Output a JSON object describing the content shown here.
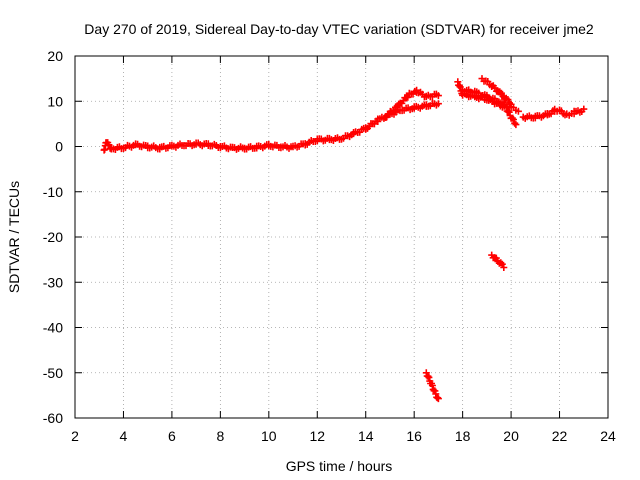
{
  "chart_data": {
    "type": "scatter",
    "title": "Day 270 of 2019, Sidereal Day-to-day VTEC variation (SDTVAR) for receiver jme2",
    "xlabel": "GPS time / hours",
    "ylabel": "SDTVAR / TECUs",
    "xlim": [
      2,
      24
    ],
    "ylim": [
      -60,
      20
    ],
    "xticks": [
      2,
      4,
      6,
      8,
      10,
      12,
      14,
      16,
      18,
      20,
      22,
      24
    ],
    "yticks": [
      -60,
      -50,
      -40,
      -30,
      -20,
      -10,
      0,
      10,
      20
    ],
    "grid": true,
    "series": [
      {
        "name": "jme2",
        "color": "#ff0000",
        "marker": "plus",
        "segments": [
          [
            [
              3.2,
              -0.8
            ],
            [
              3.3,
              1.0
            ],
            [
              3.5,
              -0.5
            ],
            [
              4.0,
              -0.2
            ],
            [
              4.5,
              0.3
            ],
            [
              5.0,
              0.0
            ],
            [
              5.5,
              -0.3
            ],
            [
              6.0,
              0.0
            ],
            [
              6.5,
              0.4
            ],
            [
              7.0,
              0.5
            ],
            [
              7.5,
              0.4
            ],
            [
              8.0,
              0.0
            ],
            [
              8.5,
              -0.4
            ],
            [
              9.0,
              -0.3
            ],
            [
              9.5,
              -0.2
            ],
            [
              10.0,
              0.2
            ],
            [
              10.5,
              0.0
            ],
            [
              11.0,
              -0.2
            ],
            [
              11.5,
              0.6
            ],
            [
              12.0,
              1.5
            ],
            [
              12.5,
              1.5
            ],
            [
              13.0,
              1.8
            ],
            [
              13.5,
              2.8
            ],
            [
              14.0,
              4.0
            ],
            [
              14.5,
              5.8
            ],
            [
              15.0,
              7.0
            ],
            [
              15.5,
              8.2
            ],
            [
              16.0,
              8.5
            ],
            [
              16.5,
              9.0
            ],
            [
              17.0,
              9.5
            ]
          ],
          [
            [
              14.8,
              6.5
            ],
            [
              15.3,
              8.8
            ],
            [
              15.8,
              11.5
            ],
            [
              16.1,
              12.2
            ],
            [
              16.5,
              11.0
            ],
            [
              17.0,
              11.5
            ]
          ],
          [
            [
              17.8,
              14.3
            ],
            [
              18.0,
              11.5
            ],
            [
              18.5,
              11.0
            ],
            [
              19.0,
              10.5
            ],
            [
              19.4,
              9.5
            ],
            [
              19.8,
              8.5
            ],
            [
              20.0,
              6.5
            ],
            [
              20.2,
              5.0
            ]
          ],
          [
            [
              18.0,
              12.5
            ],
            [
              18.5,
              12.0
            ],
            [
              19.0,
              11.0
            ],
            [
              19.5,
              10.0
            ],
            [
              20.0,
              8.5
            ],
            [
              20.3,
              8.0
            ]
          ],
          [
            [
              18.8,
              15.0
            ],
            [
              19.2,
              13.5
            ],
            [
              19.6,
              11.5
            ],
            [
              20.0,
              9.5
            ]
          ],
          [
            [
              20.5,
              6.5
            ],
            [
              21.0,
              6.5
            ],
            [
              21.5,
              7.0
            ],
            [
              21.8,
              8.0
            ],
            [
              22.0,
              7.8
            ],
            [
              22.3,
              7.0
            ],
            [
              22.6,
              7.5
            ],
            [
              23.0,
              8.0
            ]
          ],
          [
            [
              19.2,
              -24.0
            ],
            [
              19.7,
              -26.5
            ]
          ],
          [
            [
              16.5,
              -50.0
            ],
            [
              17.0,
              -56.0
            ]
          ]
        ]
      }
    ]
  }
}
